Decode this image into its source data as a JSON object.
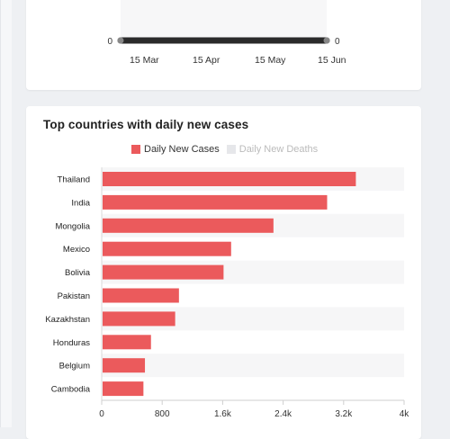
{
  "colors": {
    "bar": "#eb5a5c",
    "deaths_swatch": "#e6e7ea",
    "stripe": "#f6f6f7",
    "top_line": "#2b2b2b"
  },
  "top_chart": {
    "x_ticks": [
      "15 Mar",
      "15 Apr",
      "15 May",
      "15 Jun"
    ],
    "left_value": "0",
    "right_value": "0"
  },
  "chart_data": {
    "type": "bar",
    "orientation": "horizontal",
    "title": "Top countries with daily new cases",
    "legend": [
      "Daily New Cases",
      "Daily New Deaths"
    ],
    "categories": [
      "Thailand",
      "India",
      "Mongolia",
      "Mexico",
      "Bolivia",
      "Pakistan",
      "Kazakhstan",
      "Honduras",
      "Belgium",
      "Cambodia"
    ],
    "series": [
      {
        "name": "Daily New Cases",
        "values": [
          3350,
          2970,
          2260,
          1700,
          1600,
          1010,
          960,
          640,
          560,
          540
        ]
      }
    ],
    "x_ticks": [
      "0",
      "800",
      "1.6k",
      "2.4k",
      "3.2k",
      "4k"
    ],
    "xlim": [
      0,
      4000
    ]
  }
}
